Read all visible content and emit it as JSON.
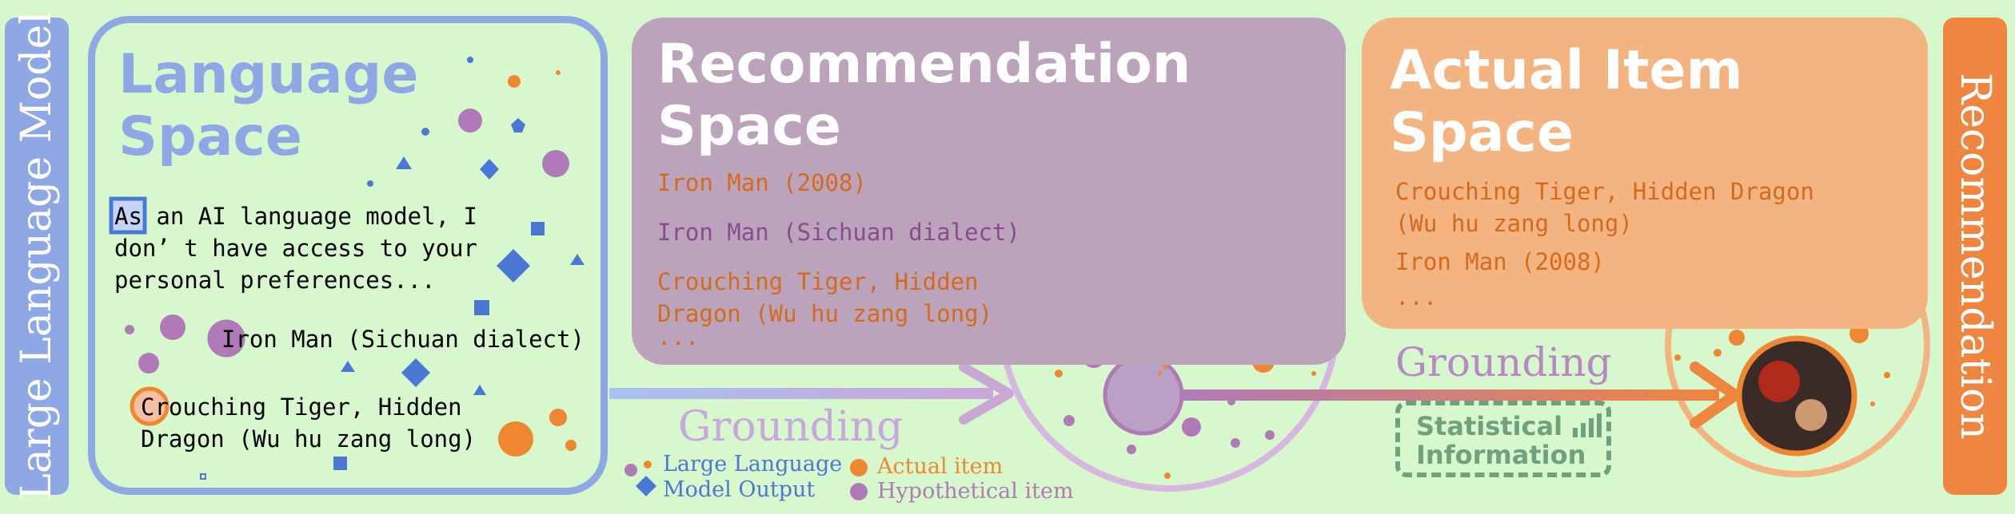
{
  "left_bar": {
    "label": "Large Language Model"
  },
  "right_bar": {
    "label": "Recommendation"
  },
  "language_space": {
    "title": "Language\nSpace",
    "highlight_word": "As",
    "output_text": " an AI language model, I\ndon’ t have access to your\npersonal preferences...",
    "item1": "Iron Man (Sichuan dialect)",
    "item2": "Crouching Tiger, Hidden\nDragon (Wu hu zang long)"
  },
  "recommendation_space": {
    "title": "Recommendation\nSpace",
    "item1": "Iron Man (2008)",
    "item2": "Iron Man (Sichuan dialect)",
    "item3": "Crouching Tiger, Hidden\nDragon (Wu hu zang long)",
    "ellipsis": "..."
  },
  "actual_item_space": {
    "title": "Actual Item\nSpace",
    "item1": "Crouching Tiger, Hidden Dragon\n(Wu hu zang long)",
    "item2": "Iron Man (2008)",
    "ellipsis": "..."
  },
  "grounding_left": "Grounding",
  "grounding_right": "Grounding",
  "statistical_information": "Statistical\nInformation",
  "legend": {
    "llm_output": "Large Language\nModel Output",
    "actual_item": "Actual item",
    "hypothetical_item": "Hypothetical item"
  },
  "colors": {
    "background": "#d7f8cc",
    "llm_blue": "#8ea8e6",
    "shape_blue": "#4a78d4",
    "actual_orange": "#ef8630",
    "hypothetical_purple": "#b07ab8",
    "recommendation_panel": "#bba4bb",
    "actual_panel": "#f4b482",
    "stat_green": "#6fa07f"
  }
}
